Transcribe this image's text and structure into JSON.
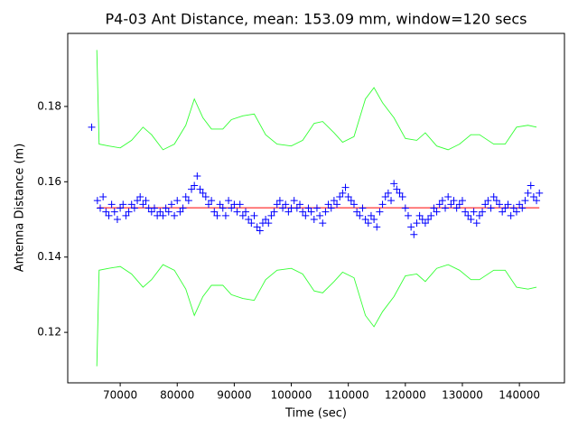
{
  "chart_data": {
    "type": "scatter",
    "title": "P4-03 Ant Distance, mean: 153.09 mm, window=120 secs",
    "x_label": "Time (sec)",
    "y_label": "Antenna Distance (m)",
    "xlim": [
      60800,
      147900
    ],
    "ylim": [
      0.1066,
      0.1994
    ],
    "xticks": [
      70000,
      80000,
      90000,
      100000,
      110000,
      120000,
      130000,
      140000
    ],
    "yticks": [
      0.12,
      0.14,
      0.16,
      0.18
    ],
    "grid": false,
    "series": [
      {
        "style": "plus",
        "color": "#0000ff",
        "x": [
          65000,
          66000,
          66500,
          67000,
          67500,
          68000,
          68500,
          69000,
          69500,
          70000,
          70500,
          71000,
          71500,
          72000,
          72500,
          73000,
          73500,
          74000,
          74500,
          75000,
          75500,
          76000,
          76500,
          77000,
          77500,
          78000,
          78500,
          79000,
          79500,
          80000,
          80500,
          81000,
          81500,
          82000,
          82500,
          83000,
          83500,
          84000,
          84500,
          85000,
          85500,
          86000,
          86500,
          87000,
          87500,
          88000,
          88500,
          89000,
          89500,
          90000,
          90500,
          91000,
          91500,
          92000,
          92500,
          93000,
          93500,
          94000,
          94500,
          95000,
          95500,
          96000,
          96500,
          97000,
          97500,
          98000,
          98500,
          99000,
          99500,
          100000,
          100500,
          101000,
          101500,
          102000,
          102500,
          103000,
          103500,
          104000,
          104500,
          105000,
          105500,
          106000,
          106500,
          107000,
          107500,
          108000,
          108500,
          109000,
          109500,
          110000,
          110500,
          111000,
          111500,
          112000,
          112500,
          113000,
          113500,
          114000,
          114500,
          115000,
          115500,
          116000,
          116500,
          117000,
          117500,
          118000,
          118500,
          119000,
          119500,
          120000,
          120500,
          121000,
          121500,
          122000,
          122500,
          123000,
          123500,
          124000,
          124500,
          125000,
          125500,
          126000,
          126500,
          127000,
          127500,
          128000,
          128500,
          129000,
          129500,
          130000,
          130500,
          131000,
          131500,
          132000,
          132500,
          133000,
          133500,
          134000,
          134500,
          135000,
          135500,
          136000,
          136500,
          137000,
          137500,
          138000,
          138500,
          139000,
          139500,
          140000,
          140500,
          141000,
          141500,
          142000,
          142500,
          143000,
          143500
        ],
        "y": [
          0.1745,
          0.155,
          0.153,
          0.156,
          0.152,
          0.151,
          0.154,
          0.152,
          0.15,
          0.153,
          0.154,
          0.151,
          0.152,
          0.154,
          0.153,
          0.155,
          0.156,
          0.154,
          0.155,
          0.153,
          0.152,
          0.153,
          0.151,
          0.152,
          0.151,
          0.153,
          0.152,
          0.154,
          0.151,
          0.155,
          0.152,
          0.153,
          0.156,
          0.155,
          0.158,
          0.159,
          0.1615,
          0.158,
          0.157,
          0.156,
          0.154,
          0.155,
          0.152,
          0.151,
          0.154,
          0.153,
          0.151,
          0.155,
          0.153,
          0.154,
          0.152,
          0.154,
          0.151,
          0.152,
          0.15,
          0.149,
          0.151,
          0.148,
          0.147,
          0.149,
          0.15,
          0.149,
          0.151,
          0.152,
          0.154,
          0.155,
          0.153,
          0.154,
          0.152,
          0.153,
          0.155,
          0.153,
          0.154,
          0.152,
          0.151,
          0.153,
          0.152,
          0.15,
          0.153,
          0.151,
          0.149,
          0.152,
          0.154,
          0.153,
          0.155,
          0.154,
          0.156,
          0.157,
          0.1585,
          0.156,
          0.155,
          0.154,
          0.152,
          0.151,
          0.153,
          0.15,
          0.149,
          0.151,
          0.15,
          0.148,
          0.152,
          0.154,
          0.156,
          0.157,
          0.155,
          0.1595,
          0.158,
          0.157,
          0.156,
          0.153,
          0.151,
          0.148,
          0.146,
          0.149,
          0.151,
          0.15,
          0.149,
          0.15,
          0.151,
          0.153,
          0.152,
          0.154,
          0.155,
          0.153,
          0.156,
          0.154,
          0.155,
          0.153,
          0.154,
          0.155,
          0.152,
          0.151,
          0.15,
          0.152,
          0.149,
          0.151,
          0.152,
          0.154,
          0.155,
          0.153,
          0.156,
          0.155,
          0.154,
          0.152,
          0.153,
          0.154,
          0.151,
          0.153,
          0.152,
          0.154,
          0.153,
          0.155,
          0.157,
          0.159,
          0.156,
          0.155,
          0.157
        ]
      },
      {
        "style": "line",
        "color": "#ff0000",
        "x": [
          66000,
          143500
        ],
        "y": [
          0.15309,
          0.15309
        ]
      },
      {
        "style": "line",
        "color": "#33ff33",
        "x": [
          65900,
          66300,
          68000,
          70000,
          72000,
          74000,
          75500,
          77500,
          79500,
          81500,
          83000,
          84500,
          86000,
          88000,
          89500,
          91500,
          93500,
          95500,
          97500,
          100000,
          102000,
          104000,
          105500,
          107500,
          109000,
          111000,
          113000,
          114500,
          116000,
          118000,
          120000,
          122000,
          123500,
          125500,
          127500,
          129500,
          131500,
          133000,
          135500,
          137500,
          139500,
          141500,
          143000
        ],
        "y": [
          0.195,
          0.17,
          0.1695,
          0.169,
          0.171,
          0.1745,
          0.1725,
          0.1685,
          0.17,
          0.175,
          0.182,
          0.177,
          0.174,
          0.174,
          0.1765,
          0.1775,
          0.178,
          0.1725,
          0.17,
          0.1695,
          0.171,
          0.1755,
          0.176,
          0.173,
          0.1705,
          0.172,
          0.182,
          0.185,
          0.181,
          0.177,
          0.1715,
          0.171,
          0.173,
          0.1695,
          0.1685,
          0.17,
          0.1725,
          0.1725,
          0.17,
          0.17,
          0.1745,
          0.175,
          0.1745
        ]
      },
      {
        "style": "line",
        "color": "#33ff33",
        "x": [
          65900,
          66300,
          68000,
          70000,
          72000,
          74000,
          75500,
          77500,
          79500,
          81500,
          83000,
          84500,
          86000,
          88000,
          89500,
          91500,
          93500,
          95500,
          97500,
          100000,
          102000,
          104000,
          105500,
          107500,
          109000,
          111000,
          113000,
          114500,
          116000,
          118000,
          120000,
          122000,
          123500,
          125500,
          127500,
          129500,
          131500,
          133000,
          135500,
          137500,
          139500,
          141500,
          143000
        ],
        "y": [
          0.111,
          0.1365,
          0.137,
          0.1375,
          0.1355,
          0.132,
          0.134,
          0.138,
          0.1365,
          0.1315,
          0.1245,
          0.1295,
          0.1325,
          0.1325,
          0.13,
          0.129,
          0.1285,
          0.134,
          0.1365,
          0.137,
          0.1355,
          0.131,
          0.1305,
          0.1335,
          0.136,
          0.1345,
          0.1245,
          0.1215,
          0.1255,
          0.1295,
          0.135,
          0.1355,
          0.1335,
          0.137,
          0.138,
          0.1365,
          0.134,
          0.134,
          0.1365,
          0.1365,
          0.132,
          0.1315,
          0.132
        ]
      }
    ]
  }
}
